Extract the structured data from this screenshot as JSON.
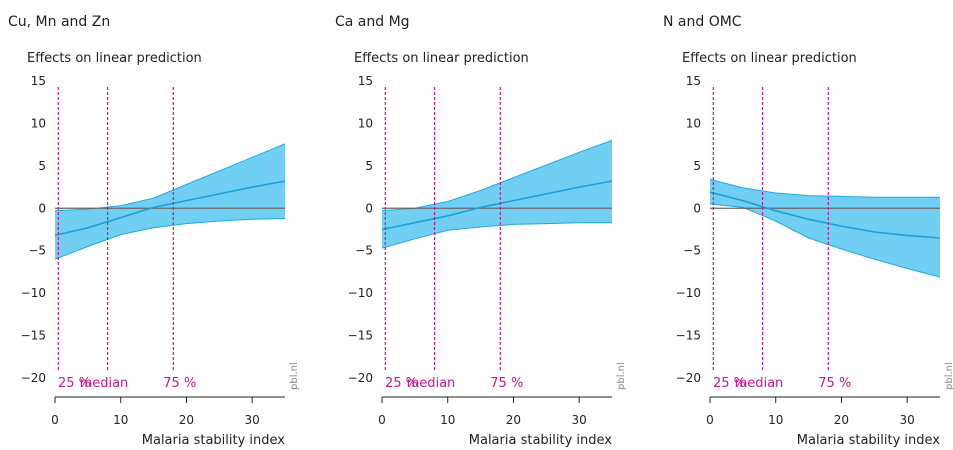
{
  "colors": {
    "band": "#5cc8f0",
    "band_edge": "#21a9e1",
    "line": "#1aa1dc",
    "zero": "#666666",
    "ref": "#c4168f",
    "axis": "#222222"
  },
  "credit": "pbl.nl",
  "chart_data": [
    {
      "type": "area",
      "title": "Cu, Mn and Zn",
      "ylabel": "Effects on linear prediction",
      "xlabel": "Malaria stability index",
      "xlim": [
        0,
        35
      ],
      "ylim": [
        -20,
        15
      ],
      "xticks": [
        0,
        10,
        20,
        30
      ],
      "yticks": [
        15,
        10,
        5,
        0,
        -5,
        -10,
        -15,
        -20
      ],
      "x": [
        0,
        5,
        10,
        15,
        20,
        25,
        30,
        35
      ],
      "series": [
        {
          "role": "estimate",
          "values": [
            -3.2,
            -2.3,
            -1.1,
            0.1,
            0.9,
            1.7,
            2.5,
            3.2
          ]
        },
        {
          "role": "upper",
          "values": [
            -0.3,
            -0.1,
            0.3,
            1.2,
            2.8,
            4.4,
            6.0,
            7.6
          ]
        },
        {
          "role": "lower",
          "values": [
            -6.0,
            -4.5,
            -3.1,
            -2.3,
            -1.8,
            -1.5,
            -1.3,
            -1.2
          ]
        }
      ],
      "reference_lines": [
        {
          "x": 0.5,
          "label": "25 %"
        },
        {
          "x": 8,
          "label": "median"
        },
        {
          "x": 18,
          "label": "75 %"
        }
      ]
    },
    {
      "type": "area",
      "title": "Ca and Mg",
      "ylabel": "Effects on linear prediction",
      "xlabel": "Malaria stability index",
      "xlim": [
        0,
        35
      ],
      "ylim": [
        -20,
        15
      ],
      "xticks": [
        0,
        10,
        20,
        30
      ],
      "yticks": [
        15,
        10,
        5,
        0,
        -5,
        -10,
        -15,
        -20
      ],
      "x": [
        0,
        5,
        10,
        15,
        20,
        25,
        30,
        35
      ],
      "series": [
        {
          "role": "estimate",
          "values": [
            -2.5,
            -1.7,
            -0.9,
            0.1,
            0.9,
            1.7,
            2.5,
            3.2
          ]
        },
        {
          "role": "upper",
          "values": [
            -0.3,
            0.0,
            0.8,
            2.1,
            3.6,
            5.1,
            6.6,
            8.0
          ]
        },
        {
          "role": "lower",
          "values": [
            -4.7,
            -3.6,
            -2.6,
            -2.2,
            -1.9,
            -1.8,
            -1.7,
            -1.7
          ]
        }
      ],
      "reference_lines": [
        {
          "x": 0.5,
          "label": "25 %"
        },
        {
          "x": 8,
          "label": "median"
        },
        {
          "x": 18,
          "label": "75 %"
        }
      ]
    },
    {
      "type": "area",
      "title": "N and OMC",
      "ylabel": "Effects on linear prediction",
      "xlabel": "Malaria stability index",
      "xlim": [
        0,
        35
      ],
      "ylim": [
        -20,
        15
      ],
      "xticks": [
        0,
        10,
        20,
        30
      ],
      "yticks": [
        15,
        10,
        5,
        0,
        -5,
        -10,
        -15,
        -20
      ],
      "x": [
        0,
        5,
        10,
        15,
        20,
        25,
        30,
        35
      ],
      "series": [
        {
          "role": "estimate",
          "values": [
            1.9,
            0.9,
            -0.3,
            -1.3,
            -2.1,
            -2.8,
            -3.2,
            -3.5
          ]
        },
        {
          "role": "upper",
          "values": [
            3.4,
            2.4,
            1.8,
            1.5,
            1.4,
            1.3,
            1.3,
            1.3
          ]
        },
        {
          "role": "lower",
          "values": [
            0.5,
            0.1,
            -1.5,
            -3.5,
            -4.8,
            -6.0,
            -7.1,
            -8.1
          ]
        }
      ],
      "reference_lines": [
        {
          "x": 0.5,
          "label": "25 %"
        },
        {
          "x": 8,
          "label": "median"
        },
        {
          "x": 18,
          "label": "75 %"
        }
      ]
    }
  ]
}
